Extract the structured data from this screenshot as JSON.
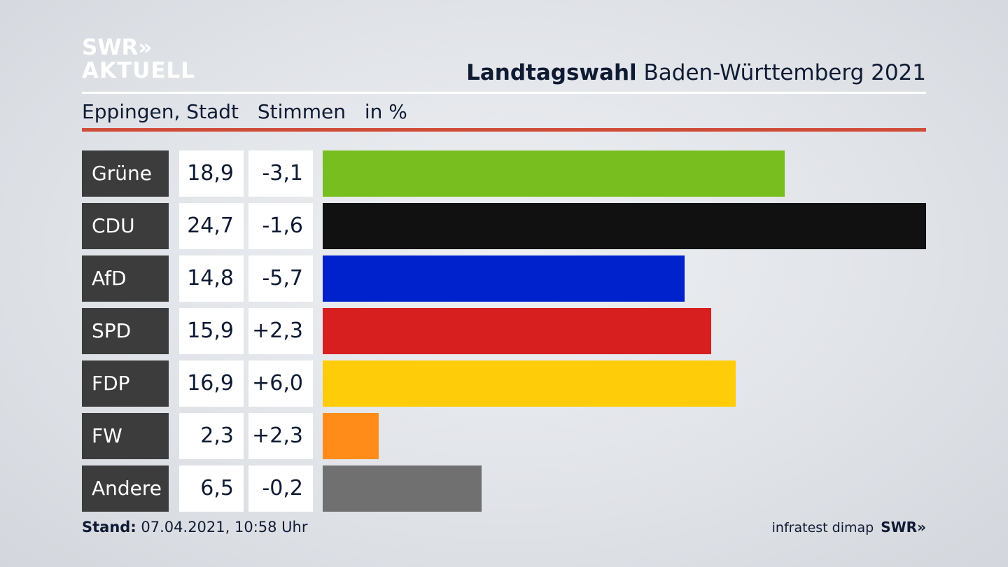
{
  "brand": {
    "logo_line1": "SWR»",
    "logo_line2": "AKTUELL"
  },
  "header": {
    "title_bold": "Landtagswahl",
    "title_rest": " Baden-Württemberg 2021",
    "location": "Eppingen, Stadt",
    "measure": "Stimmen",
    "unit": "in %"
  },
  "chart_data": {
    "type": "bar",
    "orientation": "horizontal",
    "categories": [
      "Grüne",
      "CDU",
      "AfD",
      "SPD",
      "FDP",
      "FW",
      "Andere"
    ],
    "values": [
      18.9,
      24.7,
      14.8,
      15.9,
      16.9,
      2.3,
      6.5
    ],
    "value_labels": [
      "18,9",
      "24,7",
      "14,8",
      "15,9",
      "16,9",
      "2,3",
      "6,5"
    ],
    "changes": [
      -3.1,
      -1.6,
      -5.7,
      2.3,
      6.0,
      2.3,
      -0.2
    ],
    "change_labels": [
      "-3,1",
      "-1,6",
      "-5,7",
      "+2,3",
      "+6,0",
      "+2,3",
      "-0,2"
    ],
    "colors": [
      "#78be1e",
      "#111111",
      "#0022cc",
      "#d71f1f",
      "#ffcc0a",
      "#ff8c19",
      "#707070"
    ],
    "xlim": [
      0,
      24.7
    ]
  },
  "footer": {
    "stand_label": "Stand:",
    "stand_value": " 07.04.2021, 10:58 Uhr",
    "source": "infratest dimap",
    "brand": "SWR»"
  }
}
